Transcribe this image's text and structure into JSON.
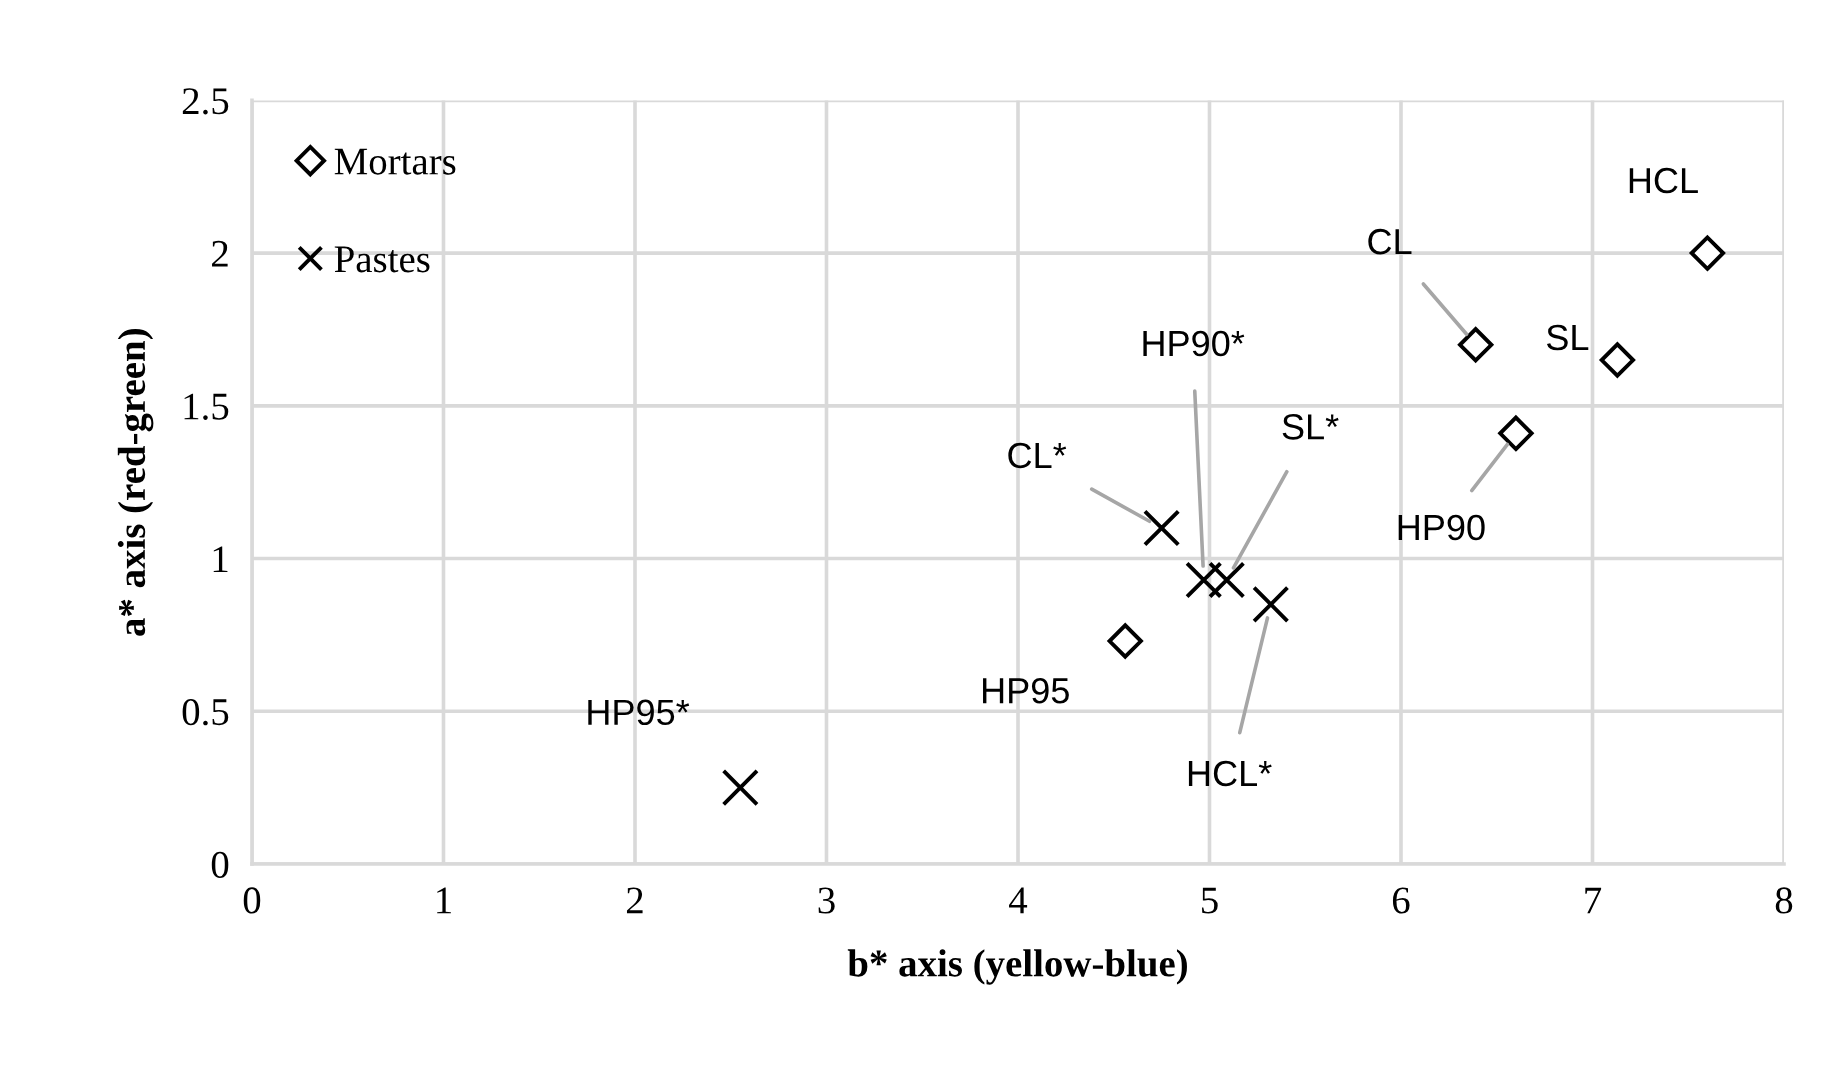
{
  "chart_data": {
    "type": "scatter",
    "xlabel": "b* axis (yellow-blue)",
    "ylabel": "a* axis (red-green)",
    "xlim": [
      0,
      8
    ],
    "xticks": [
      0,
      1,
      2,
      3,
      4,
      5,
      6,
      7,
      8
    ],
    "ylim": [
      0,
      2.5
    ],
    "yticks": [
      0,
      0.5,
      1,
      1.5,
      2,
      2.5
    ],
    "grid": true,
    "legend": "top left",
    "series": [
      {
        "name": "Mortars",
        "color": "#000000",
        "marker": "diamond",
        "x": [
          7.6,
          6.39,
          7.13,
          6.6,
          4.56
        ],
        "values": [
          2.0,
          1.7,
          1.65,
          1.41,
          0.73
        ]
      },
      {
        "name": "Pastes",
        "color": "#000000",
        "marker": "cross",
        "x": [
          4.75,
          4.97,
          5.09,
          5.32,
          2.55
        ],
        "values": [
          1.1,
          0.93,
          0.93,
          0.85,
          0.25
        ]
      }
    ],
    "annotations": [
      {
        "text": "HCL",
        "x": 7.6,
        "y": 2.0
      },
      {
        "text": "CL",
        "x": 6.39,
        "y": 1.7
      },
      {
        "text": "SL",
        "x": 7.13,
        "y": 1.65
      },
      {
        "text": "HP90",
        "x": 6.6,
        "y": 1.41
      },
      {
        "text": "HP95",
        "x": 4.56,
        "y": 0.73
      },
      {
        "text": "CL*",
        "x": 4.75,
        "y": 1.1
      },
      {
        "text": "HP90*",
        "x": 4.97,
        "y": 0.93
      },
      {
        "text": "SL*",
        "x": 5.09,
        "y": 0.93
      },
      {
        "text": "HCL*",
        "x": 5.32,
        "y": 0.85
      },
      {
        "text": "HP95*",
        "x": 2.55,
        "y": 0.25
      }
    ]
  }
}
